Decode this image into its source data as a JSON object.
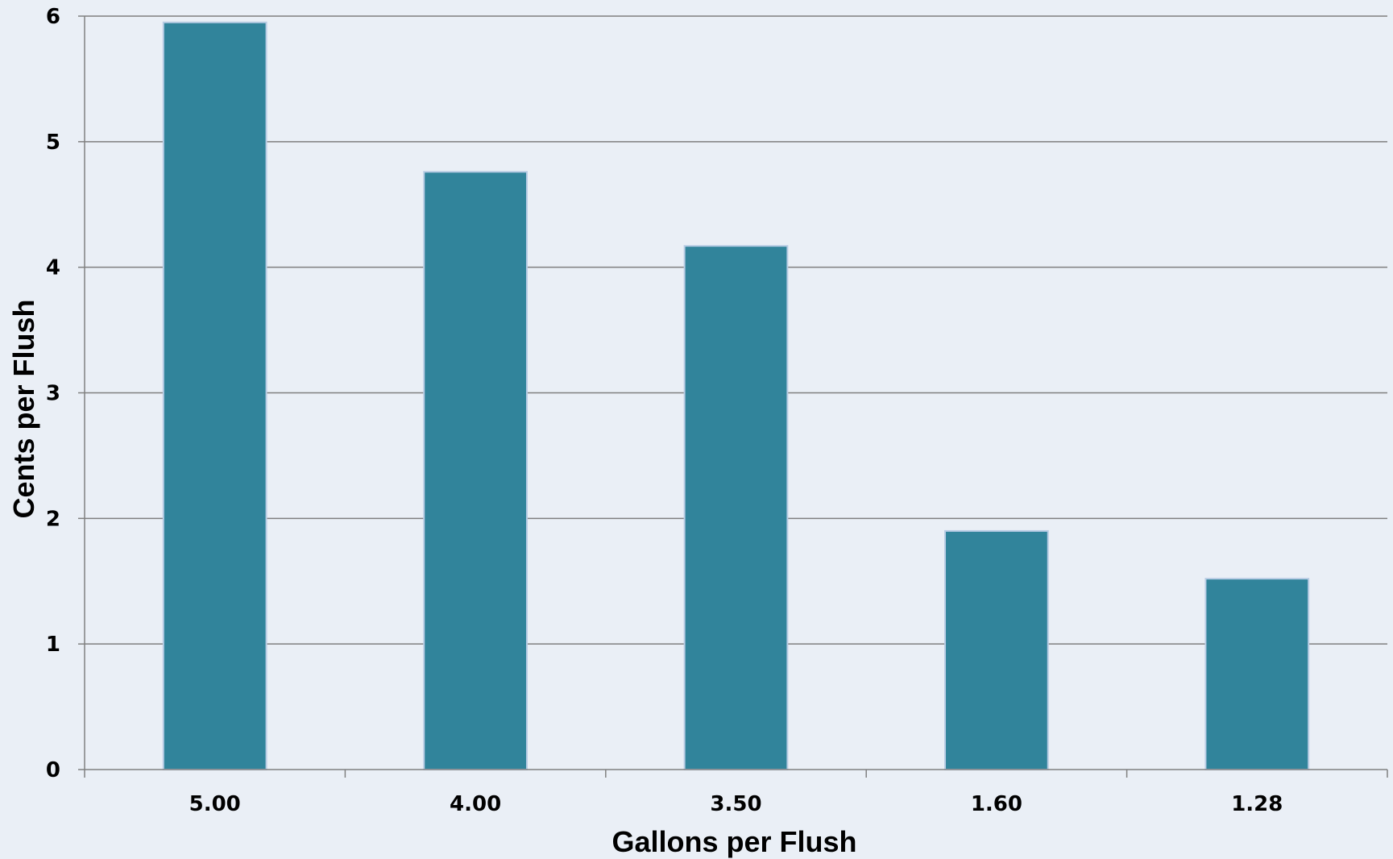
{
  "chart_data": {
    "type": "bar",
    "title": "",
    "xlabel": "Gallons per Flush",
    "ylabel": "Cents per Flush",
    "categories": [
      "5.00",
      "4.00",
      "3.50",
      "1.60",
      "1.28"
    ],
    "values": [
      5.95,
      4.76,
      4.17,
      1.9,
      1.52
    ],
    "ylim": [
      0,
      6
    ],
    "yticks": [
      "0",
      "1",
      "2",
      "3",
      "4",
      "5",
      "6"
    ],
    "grid": true,
    "legend": "none",
    "colors": {
      "bar": "#31849b",
      "bar_border": "#b8cce4",
      "background": "#eaeff6",
      "grid": "#7f7f7f",
      "axis": "#808080"
    }
  }
}
